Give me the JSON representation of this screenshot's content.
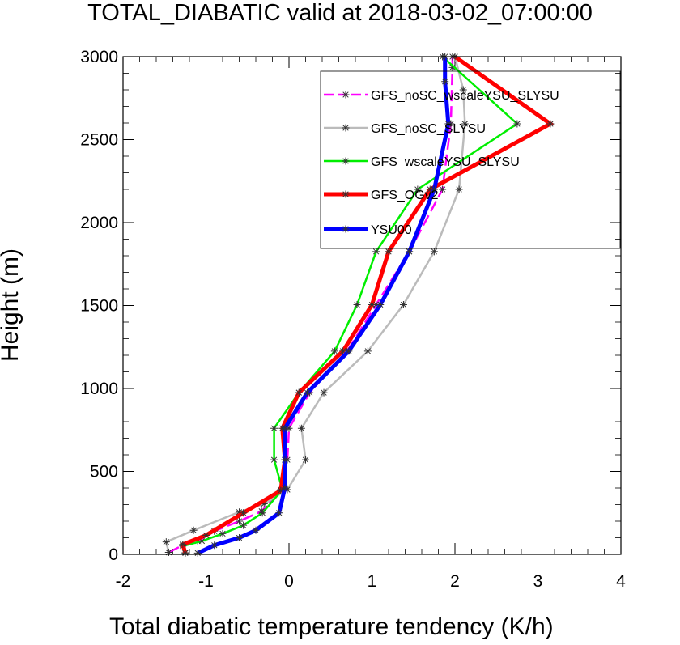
{
  "chart_data": {
    "type": "line",
    "title": "TOTAL_DIABATIC valid at 2018-03-02_07:00:00",
    "xlabel": "Total diabatic temperature tendency (K/h)",
    "ylabel": "Height (m)",
    "xlim": [
      -2,
      4
    ],
    "ylim": [
      0,
      3000
    ],
    "xticks": [
      -2,
      -1,
      0,
      1,
      2,
      3,
      4
    ],
    "yticks": [
      0,
      500,
      1000,
      1500,
      2000,
      2500,
      3000
    ],
    "grid": false,
    "legend_position": "top-right",
    "series": [
      {
        "name": "GFS_noSC_wscaleYSU_SLYSU",
        "color": "#ff00ff",
        "dash": true,
        "width": 2.5,
        "points": [
          [
            -1.45,
            12
          ],
          [
            -1.28,
            55
          ],
          [
            -1.1,
            80
          ],
          [
            -0.9,
            140
          ],
          [
            -0.6,
            200
          ],
          [
            -0.33,
            260
          ],
          [
            -0.1,
            390
          ],
          [
            -0.02,
            570
          ],
          [
            0.0,
            760
          ],
          [
            0.25,
            975
          ],
          [
            0.7,
            1225
          ],
          [
            1.05,
            1505
          ],
          [
            1.45,
            1825
          ],
          [
            1.85,
            2200
          ],
          [
            1.95,
            2595
          ],
          [
            1.97,
            2935
          ],
          [
            1.97,
            3000
          ]
        ]
      },
      {
        "name": "GFS_noSC_SLYSU",
        "color": "#bbbbbb",
        "dash": false,
        "width": 2.5,
        "points": [
          [
            -1.45,
            12
          ],
          [
            -1.48,
            75
          ],
          [
            -1.15,
            145
          ],
          [
            -0.6,
            255
          ],
          [
            -0.3,
            305
          ],
          [
            -0.02,
            390
          ],
          [
            0.2,
            570
          ],
          [
            0.15,
            760
          ],
          [
            0.42,
            975
          ],
          [
            0.95,
            1225
          ],
          [
            1.38,
            1505
          ],
          [
            1.75,
            1825
          ],
          [
            2.05,
            2200
          ],
          [
            2.12,
            2595
          ],
          [
            2.1,
            2800
          ],
          [
            2.0,
            3000
          ]
        ]
      },
      {
        "name": "GFS_wscaleYSU_SLYSU",
        "color": "#00ee00",
        "dash": false,
        "width": 2.5,
        "points": [
          [
            -1.25,
            10
          ],
          [
            -1.28,
            50
          ],
          [
            -1.05,
            80
          ],
          [
            -0.8,
            125
          ],
          [
            -0.55,
            175
          ],
          [
            -0.32,
            250
          ],
          [
            -0.08,
            390
          ],
          [
            -0.18,
            570
          ],
          [
            -0.18,
            760
          ],
          [
            0.12,
            975
          ],
          [
            0.55,
            1225
          ],
          [
            0.82,
            1505
          ],
          [
            1.05,
            1825
          ],
          [
            1.55,
            2200
          ],
          [
            2.75,
            2595
          ],
          [
            1.85,
            3000
          ]
        ]
      },
      {
        "name": "GFS_OGv2",
        "color": "#ff0000",
        "dash": false,
        "width": 5,
        "points": [
          [
            -1.25,
            8
          ],
          [
            -1.28,
            60
          ],
          [
            -1.0,
            115
          ],
          [
            -0.55,
            250
          ],
          [
            -0.1,
            385
          ],
          [
            -0.05,
            570
          ],
          [
            -0.08,
            760
          ],
          [
            0.12,
            975
          ],
          [
            0.65,
            1225
          ],
          [
            1.0,
            1505
          ],
          [
            1.2,
            1825
          ],
          [
            1.7,
            2200
          ],
          [
            3.15,
            2595
          ],
          [
            2.0,
            3000
          ]
        ]
      },
      {
        "name": "YSU00",
        "color": "#0000ff",
        "dash": false,
        "width": 5,
        "points": [
          [
            -1.1,
            8
          ],
          [
            -0.9,
            55
          ],
          [
            -0.6,
            100
          ],
          [
            -0.4,
            145
          ],
          [
            -0.12,
            250
          ],
          [
            -0.05,
            400
          ],
          [
            -0.05,
            570
          ],
          [
            -0.05,
            760
          ],
          [
            0.22,
            975
          ],
          [
            0.72,
            1225
          ],
          [
            1.1,
            1505
          ],
          [
            1.45,
            1825
          ],
          [
            1.75,
            2200
          ],
          [
            1.92,
            2595
          ],
          [
            1.88,
            2850
          ],
          [
            1.88,
            3000
          ]
        ]
      }
    ]
  }
}
